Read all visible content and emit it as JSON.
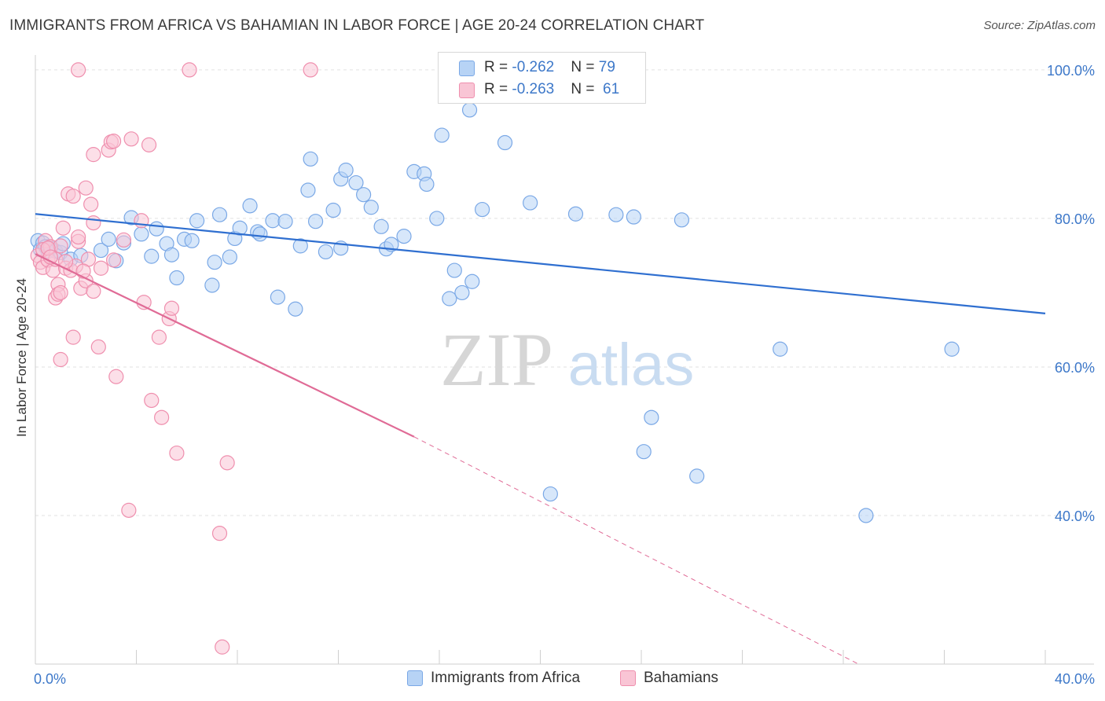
{
  "title": "IMMIGRANTS FROM AFRICA VS BAHAMIAN IN LABOR FORCE | AGE 20-24 CORRELATION CHART",
  "source": "Source: ZipAtlas.com",
  "watermark": {
    "zip": "ZIP",
    "atlas": "atlas"
  },
  "colors": {
    "blue_fill": "#b7d3f5",
    "blue_stroke": "#7aa8e6",
    "blue_line": "#2f6fd0",
    "pink_fill": "#f9c5d5",
    "pink_stroke": "#ef8fae",
    "pink_line": "#e06b96",
    "axis_text": "#3d78c9",
    "grid": "#e2e2e2"
  },
  "legend_top": {
    "rows": [
      {
        "r_label": "R = ",
        "r_value": "-0.262",
        "n_label": "N = ",
        "n_value": "79"
      },
      {
        "r_label": "R = ",
        "r_value": "-0.263",
        "n_label": "N = ",
        "n_value": "61"
      }
    ]
  },
  "legend_bottom": [
    "Immigrants from Africa",
    "Bahamians"
  ],
  "chart_data": {
    "type": "scatter",
    "title": "IMMIGRANTS FROM AFRICA VS BAHAMIAN IN LABOR FORCE | AGE 20-24 CORRELATION CHART",
    "xlabel": "",
    "ylabel": "In Labor Force | Age 20-24",
    "xlim": [
      0,
      40
    ],
    "ylim": [
      20,
      102
    ],
    "x_tick_labels": [
      "0.0%",
      "40.0%"
    ],
    "y_ticks": [
      40,
      60,
      80,
      100
    ],
    "y_tick_labels": [
      "40.0%",
      "60.0%",
      "80.0%",
      "100.0%"
    ],
    "grid": true,
    "legend_placement": "top-center",
    "series": [
      {
        "name": "Immigrants from Africa",
        "color": "#7aa8e6",
        "trend": {
          "x": [
            0,
            40
          ],
          "y": [
            80.6,
            67.2
          ]
        },
        "points": [
          [
            0.1,
            77.0
          ],
          [
            0.2,
            75.8
          ],
          [
            0.3,
            76.7
          ],
          [
            0.4,
            76.2
          ],
          [
            0.5,
            75.6
          ],
          [
            0.6,
            76.0
          ],
          [
            0.8,
            75.6
          ],
          [
            1.0,
            75.4
          ],
          [
            1.1,
            76.6
          ],
          [
            1.4,
            74.5
          ],
          [
            1.8,
            75.0
          ],
          [
            2.6,
            75.7
          ],
          [
            2.9,
            77.2
          ],
          [
            3.2,
            74.3
          ],
          [
            3.5,
            76.7
          ],
          [
            3.8,
            80.1
          ],
          [
            4.2,
            77.9
          ],
          [
            4.6,
            74.9
          ],
          [
            4.8,
            78.6
          ],
          [
            5.2,
            76.6
          ],
          [
            5.4,
            75.1
          ],
          [
            5.6,
            72.0
          ],
          [
            5.9,
            77.2
          ],
          [
            6.2,
            77.0
          ],
          [
            6.4,
            79.7
          ],
          [
            7.0,
            71.0
          ],
          [
            7.1,
            74.1
          ],
          [
            7.3,
            80.5
          ],
          [
            7.7,
            74.8
          ],
          [
            7.9,
            77.3
          ],
          [
            8.1,
            78.7
          ],
          [
            8.5,
            81.7
          ],
          [
            8.8,
            78.2
          ],
          [
            8.9,
            77.9
          ],
          [
            9.4,
            79.7
          ],
          [
            9.6,
            69.4
          ],
          [
            9.9,
            79.6
          ],
          [
            10.3,
            67.8
          ],
          [
            10.5,
            76.3
          ],
          [
            10.8,
            83.8
          ],
          [
            10.9,
            88.0
          ],
          [
            11.1,
            79.6
          ],
          [
            11.5,
            75.5
          ],
          [
            11.8,
            81.1
          ],
          [
            12.1,
            76.0
          ],
          [
            12.1,
            85.3
          ],
          [
            12.3,
            86.5
          ],
          [
            12.7,
            84.8
          ],
          [
            13.0,
            83.2
          ],
          [
            13.3,
            81.5
          ],
          [
            13.7,
            78.9
          ],
          [
            13.9,
            75.9
          ],
          [
            14.1,
            76.5
          ],
          [
            14.6,
            77.6
          ],
          [
            15.0,
            86.3
          ],
          [
            15.4,
            86.0
          ],
          [
            15.5,
            84.6
          ],
          [
            15.9,
            80.0
          ],
          [
            16.1,
            91.2
          ],
          [
            16.4,
            69.2
          ],
          [
            16.6,
            73.0
          ],
          [
            16.9,
            70.0
          ],
          [
            17.1,
            100.0
          ],
          [
            17.2,
            94.6
          ],
          [
            17.3,
            71.5
          ],
          [
            17.7,
            81.2
          ],
          [
            18.0,
            100.0
          ],
          [
            18.6,
            90.2
          ],
          [
            19.6,
            82.1
          ],
          [
            20.4,
            42.9
          ],
          [
            21.4,
            80.6
          ],
          [
            23.0,
            80.5
          ],
          [
            23.7,
            80.2
          ],
          [
            24.1,
            48.6
          ],
          [
            24.4,
            53.2
          ],
          [
            25.6,
            79.8
          ],
          [
            26.2,
            45.3
          ],
          [
            29.5,
            62.4
          ],
          [
            32.9,
            40.0
          ],
          [
            36.3,
            62.4
          ]
        ]
      },
      {
        "name": "Bahamians",
        "color": "#ef8fae",
        "trend": {
          "x": [
            0,
            15
          ],
          "y": [
            75.2,
            50.6
          ]
        },
        "trend_dashed": {
          "x": [
            15,
            32.6
          ],
          "y": [
            50.6,
            20.0
          ]
        },
        "points": [
          [
            0.1,
            75.0
          ],
          [
            0.2,
            74.1
          ],
          [
            0.3,
            73.4
          ],
          [
            0.4,
            77.0
          ],
          [
            0.5,
            74.4
          ],
          [
            0.6,
            76.2
          ],
          [
            0.7,
            73.0
          ],
          [
            0.8,
            74.5
          ],
          [
            0.8,
            69.3
          ],
          [
            0.9,
            71.1
          ],
          [
            0.9,
            69.8
          ],
          [
            1.0,
            61.0
          ],
          [
            1.0,
            70.0
          ],
          [
            1.0,
            76.3
          ],
          [
            1.1,
            78.7
          ],
          [
            1.2,
            73.3
          ],
          [
            1.3,
            83.3
          ],
          [
            1.4,
            73.0
          ],
          [
            1.5,
            83.0
          ],
          [
            1.5,
            64.0
          ],
          [
            1.6,
            73.6
          ],
          [
            1.7,
            76.9
          ],
          [
            1.7,
            77.5
          ],
          [
            1.8,
            70.6
          ],
          [
            2.0,
            84.1
          ],
          [
            2.0,
            71.6
          ],
          [
            2.1,
            74.5
          ],
          [
            2.2,
            81.9
          ],
          [
            2.3,
            70.2
          ],
          [
            2.3,
            79.4
          ],
          [
            2.3,
            88.6
          ],
          [
            2.5,
            62.7
          ],
          [
            2.6,
            73.3
          ],
          [
            2.9,
            89.2
          ],
          [
            3.0,
            90.3
          ],
          [
            3.1,
            90.4
          ],
          [
            3.1,
            74.4
          ],
          [
            3.2,
            58.7
          ],
          [
            3.5,
            77.1
          ],
          [
            3.7,
            40.7
          ],
          [
            3.8,
            90.7
          ],
          [
            4.2,
            79.7
          ],
          [
            4.3,
            68.7
          ],
          [
            4.5,
            89.9
          ],
          [
            4.6,
            55.5
          ],
          [
            4.9,
            64.0
          ],
          [
            5.0,
            53.2
          ],
          [
            5.3,
            66.5
          ],
          [
            5.4,
            67.9
          ],
          [
            5.6,
            48.4
          ],
          [
            1.7,
            100.0
          ],
          [
            6.1,
            100.0
          ],
          [
            7.3,
            37.6
          ],
          [
            7.4,
            22.3
          ],
          [
            7.6,
            47.1
          ],
          [
            10.9,
            100.0
          ],
          [
            0.3,
            75.8
          ],
          [
            0.5,
            76.0
          ],
          [
            0.6,
            74.8
          ],
          [
            1.2,
            74.2
          ],
          [
            1.9,
            72.9
          ]
        ]
      }
    ]
  }
}
